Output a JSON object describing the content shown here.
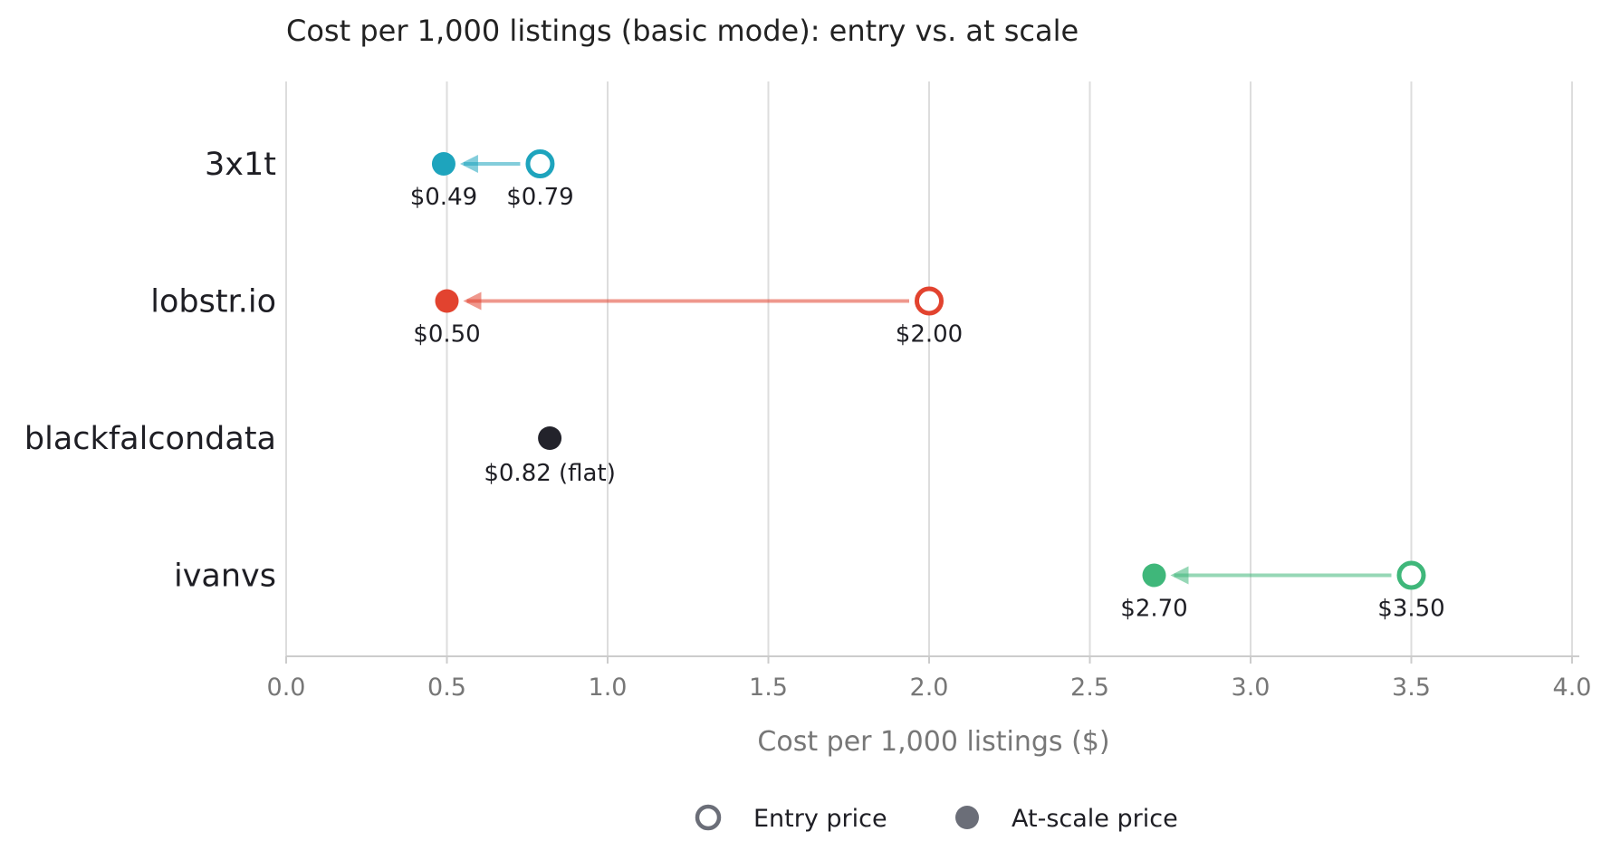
{
  "chart_data": {
    "type": "dumbbell",
    "title": "Cost per 1,000 listings (basic mode): entry vs. at scale",
    "xlabel": "Cost per 1,000 listings ($)",
    "ylabel": "",
    "xlim": [
      0,
      4.0
    ],
    "xticks": [
      0.0,
      0.5,
      1.0,
      1.5,
      2.0,
      2.5,
      3.0,
      3.5,
      4.0
    ],
    "xtick_labels": [
      "0.0",
      "0.5",
      "1.0",
      "1.5",
      "2.0",
      "2.5",
      "3.0",
      "3.5",
      "4.0"
    ],
    "grid": "vertical",
    "legend_position": "bottom-center",
    "legend": [
      {
        "label": "Entry price",
        "marker": "open-circle",
        "color": "#6b6e78"
      },
      {
        "label": "At-scale price",
        "marker": "filled-circle",
        "color": "#6b6e78"
      }
    ],
    "categories": [
      "3x1t",
      "lobstr.io",
      "blackfalcondata",
      "ivanvs"
    ],
    "series": [
      {
        "category": "3x1t",
        "entry": 0.79,
        "at_scale": 0.49,
        "entry_label": "$0.79",
        "at_scale_label": "$0.49",
        "color": "#1ea4bd"
      },
      {
        "category": "lobstr.io",
        "entry": 2.0,
        "at_scale": 0.5,
        "entry_label": "$2.00",
        "at_scale_label": "$0.50",
        "color": "#e2432f"
      },
      {
        "category": "blackfalcondata",
        "flat": 0.82,
        "flat_label": "$0.82 (flat)",
        "color": "#23232b"
      },
      {
        "category": "ivanvs",
        "entry": 3.5,
        "at_scale": 2.7,
        "entry_label": "$3.50",
        "at_scale_label": "$2.70",
        "color": "#3fb77a"
      }
    ]
  }
}
